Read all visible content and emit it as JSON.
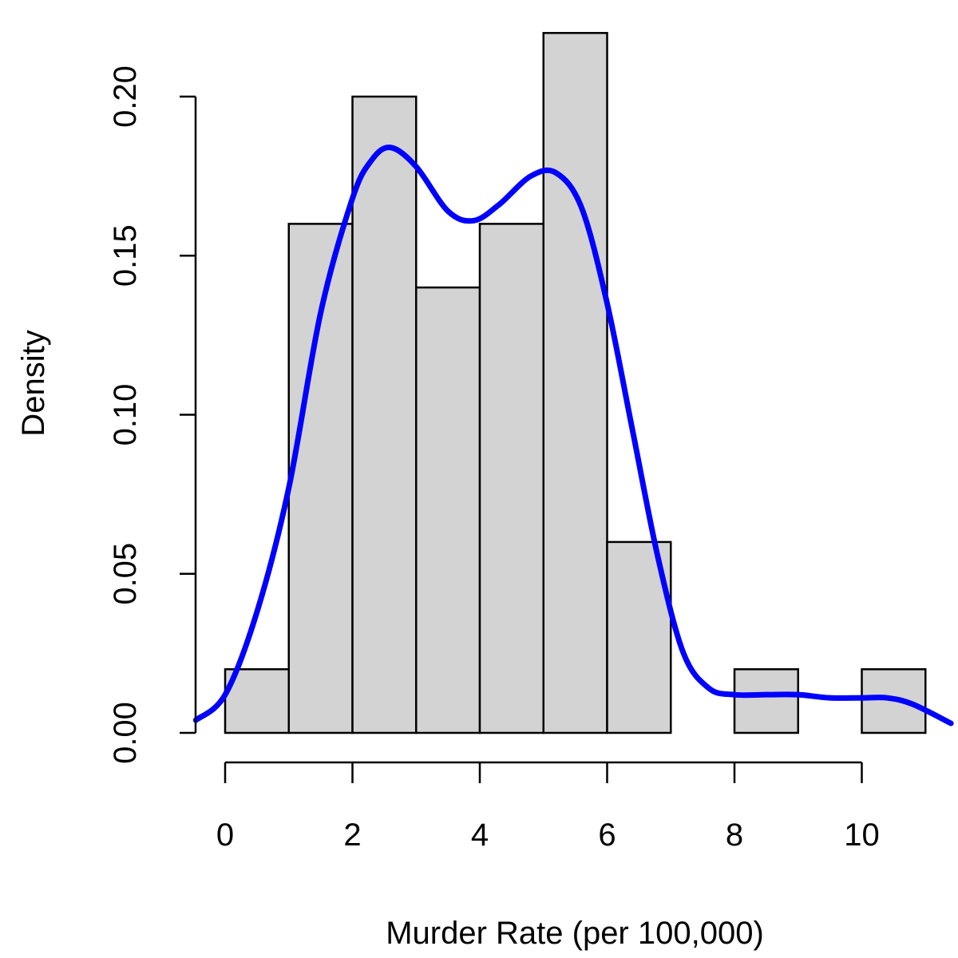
{
  "chart_data": {
    "type": "bar",
    "title": "",
    "xlabel": "Murder Rate (per 100,000)",
    "ylabel": "Density",
    "xlim": [
      -0.46,
      11.4
    ],
    "ylim": [
      0,
      0.22
    ],
    "grid": false,
    "x_ticks": [
      0,
      2,
      4,
      6,
      8,
      10
    ],
    "x_tick_labels": [
      "0",
      "2",
      "4",
      "6",
      "8",
      "10"
    ],
    "y_ticks": [
      0,
      0.05,
      0.1,
      0.15,
      0.2
    ],
    "y_tick_labels": [
      "0.00",
      "0.05",
      "0.10",
      "0.15",
      "0.20"
    ],
    "bin_edges": [
      0,
      1,
      2,
      3,
      4,
      5,
      6,
      7,
      8,
      9,
      10,
      11
    ],
    "values": [
      0.02,
      0.16,
      0.2,
      0.14,
      0.16,
      0.22,
      0.06,
      0,
      0.02,
      0,
      0.02
    ],
    "bar_color": "#d3d3d3",
    "bar_edge_color": "#000000",
    "series": [
      {
        "type": "line",
        "color": "#0000ff",
        "x": [
          -0.46,
          0,
          0.5,
          1,
          1.5,
          2,
          2.3,
          2.6,
          3,
          3.5,
          3.9,
          4.3,
          4.8,
          5.2,
          5.6,
          6,
          6.4,
          6.8,
          7.2,
          7.6,
          8,
          8.5,
          9,
          9.5,
          10,
          10.4,
          10.8,
          11.4
        ],
        "y": [
          0.004,
          0.012,
          0.038,
          0.077,
          0.132,
          0.168,
          0.18,
          0.184,
          0.178,
          0.164,
          0.161,
          0.166,
          0.175,
          0.176,
          0.165,
          0.135,
          0.095,
          0.055,
          0.025,
          0.014,
          0.012,
          0.012,
          0.012,
          0.011,
          0.011,
          0.011,
          0.009,
          0.003
        ]
      }
    ]
  }
}
